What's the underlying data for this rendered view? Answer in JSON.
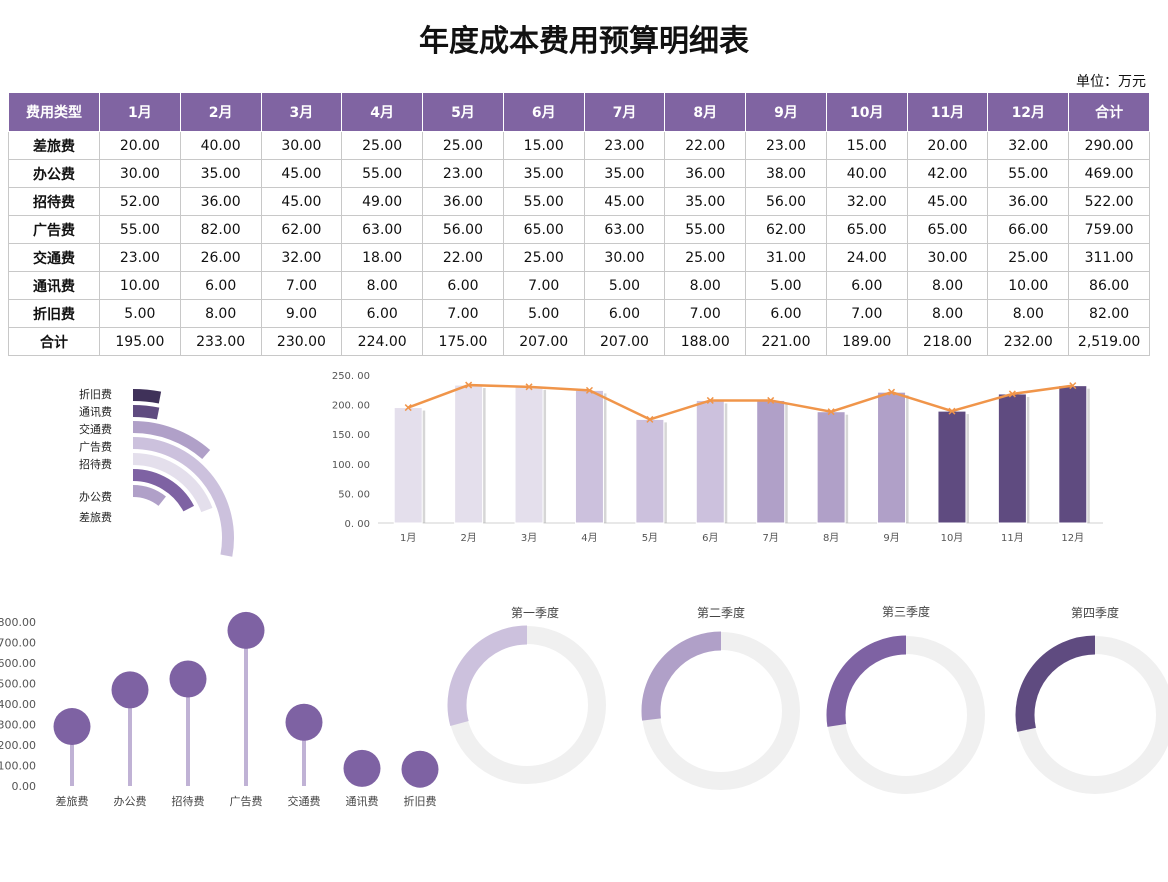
{
  "title": "年度成本费用预算明细表",
  "unit": "单位：万元",
  "colors": {
    "header": "#8064a2",
    "line": "#f0954a",
    "dot": "#7e62a3",
    "stem": "#c0b2d5",
    "track": "#f0f0f0"
  },
  "table": {
    "headers": [
      "费用类型",
      "1月",
      "2月",
      "3月",
      "4月",
      "5月",
      "6月",
      "7月",
      "8月",
      "9月",
      "10月",
      "11月",
      "12月",
      "合计"
    ],
    "rows": [
      [
        "差旅费",
        "20.00",
        "40.00",
        "30.00",
        "25.00",
        "25.00",
        "15.00",
        "23.00",
        "22.00",
        "23.00",
        "15.00",
        "20.00",
        "32.00",
        "290.00"
      ],
      [
        "办公费",
        "30.00",
        "35.00",
        "45.00",
        "55.00",
        "23.00",
        "35.00",
        "35.00",
        "36.00",
        "38.00",
        "40.00",
        "42.00",
        "55.00",
        "469.00"
      ],
      [
        "招待费",
        "52.00",
        "36.00",
        "45.00",
        "49.00",
        "36.00",
        "55.00",
        "45.00",
        "35.00",
        "56.00",
        "32.00",
        "45.00",
        "36.00",
        "522.00"
      ],
      [
        "广告费",
        "55.00",
        "82.00",
        "62.00",
        "63.00",
        "56.00",
        "65.00",
        "63.00",
        "55.00",
        "62.00",
        "65.00",
        "65.00",
        "66.00",
        "759.00"
      ],
      [
        "交通费",
        "23.00",
        "26.00",
        "32.00",
        "18.00",
        "22.00",
        "25.00",
        "30.00",
        "25.00",
        "31.00",
        "24.00",
        "30.00",
        "25.00",
        "311.00"
      ],
      [
        "通讯费",
        "10.00",
        "6.00",
        "7.00",
        "8.00",
        "6.00",
        "7.00",
        "5.00",
        "8.00",
        "5.00",
        "6.00",
        "8.00",
        "10.00",
        "86.00"
      ],
      [
        "折旧费",
        "5.00",
        "8.00",
        "9.00",
        "6.00",
        "7.00",
        "5.00",
        "6.00",
        "7.00",
        "6.00",
        "7.00",
        "8.00",
        "8.00",
        "82.00"
      ],
      [
        "合计",
        "195.00",
        "233.00",
        "230.00",
        "224.00",
        "175.00",
        "207.00",
        "207.00",
        "188.00",
        "221.00",
        "189.00",
        "218.00",
        "232.00",
        "2,519.00"
      ]
    ]
  },
  "chart_data": [
    {
      "type": "radial-bar",
      "categories": [
        "折旧费",
        "通讯费",
        "交通费",
        "广告费",
        "招待费",
        "办公费",
        "差旅费"
      ],
      "values": [
        82,
        86,
        311,
        759,
        522,
        469,
        290
      ],
      "colors": [
        "#3f3159",
        "#5f4b80",
        "#b0a0c8",
        "#ccc1dd",
        "#e4dfec",
        "#7e62a3",
        "#b0a0c8"
      ]
    },
    {
      "type": "bar+line",
      "categories": [
        "1月",
        "2月",
        "3月",
        "4月",
        "5月",
        "6月",
        "7月",
        "8月",
        "9月",
        "10月",
        "11月",
        "12月"
      ],
      "values": [
        195,
        233,
        230,
        224,
        175,
        207,
        207,
        188,
        221,
        189,
        218,
        232
      ],
      "yticks": [
        "0. 00",
        "50. 00",
        "100. 00",
        "150. 00",
        "200. 00",
        "250. 00"
      ],
      "ylim": [
        0,
        250
      ],
      "bar_colors": [
        "#e4dfec",
        "#e4dfec",
        "#e4dfec",
        "#ccc1dd",
        "#ccc1dd",
        "#ccc1dd",
        "#b0a0c8",
        "#b0a0c8",
        "#b0a0c8",
        "#5f4b80",
        "#5f4b80",
        "#5f4b80"
      ]
    },
    {
      "type": "lollipop",
      "categories": [
        "差旅费",
        "办公费",
        "招待费",
        "广告费",
        "交通费",
        "通讯费",
        "折旧费"
      ],
      "values": [
        290,
        469,
        522,
        759,
        311,
        86,
        82
      ],
      "yticks": [
        "0.00",
        "100.00",
        "200.00",
        "300.00",
        "400.00",
        "500.00",
        "600.00",
        "700.00",
        "800.00"
      ],
      "ylim": [
        0,
        800
      ]
    },
    {
      "type": "donut",
      "titles": [
        "第一季度",
        "第二季度",
        "第三季度",
        "第四季度"
      ],
      "values": [
        658,
        606,
        616,
        639
      ],
      "total": 2519,
      "colors": [
        "#ccc1dd",
        "#b0a0c8",
        "#7e62a3",
        "#5f4b80"
      ]
    }
  ]
}
